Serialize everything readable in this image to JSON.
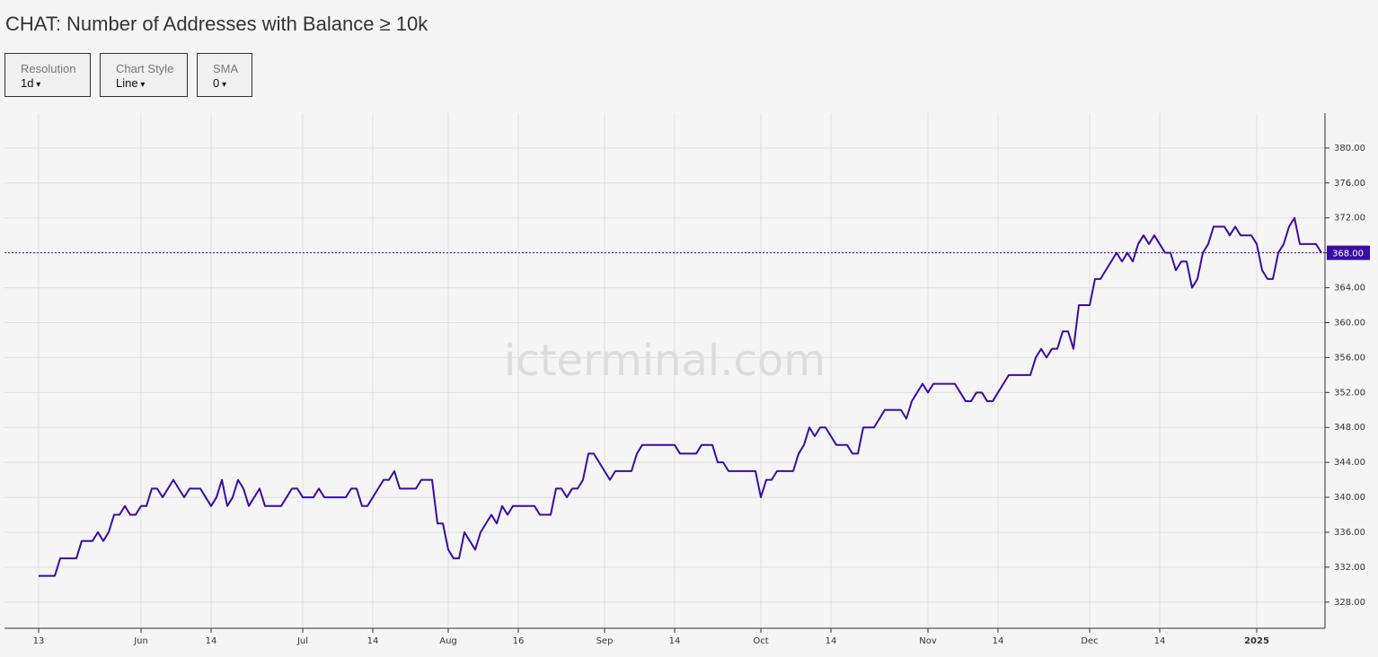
{
  "chart_data": {
    "type": "line",
    "title": "CHAT: Number of Addresses with Balance ≥ 10k",
    "controls": [
      {
        "label": "Resolution",
        "value": "1d"
      },
      {
        "label": "Chart Style",
        "value": "Line"
      },
      {
        "label": "SMA",
        "value": "0"
      }
    ],
    "watermark": "icterminal.com",
    "color": "#3a0ca3",
    "grid": true,
    "categories": [
      "13",
      null,
      null,
      null,
      null,
      null,
      null,
      null,
      null,
      null,
      null,
      null,
      null,
      null,
      null,
      null,
      null,
      null,
      null,
      "Jun",
      null,
      null,
      null,
      null,
      null,
      null,
      null,
      null,
      null,
      null,
      null,
      null,
      "14",
      null,
      null,
      null,
      null,
      null,
      null,
      null,
      null,
      null,
      null,
      null,
      null,
      null,
      null,
      null,
      null,
      "Jul",
      null,
      null,
      null,
      null,
      null,
      null,
      null,
      null,
      null,
      null,
      null,
      null,
      "14",
      null,
      null,
      null,
      null,
      null,
      null,
      null,
      null,
      null,
      null,
      null,
      null,
      null,
      "Aug",
      null,
      null,
      null,
      null,
      null,
      null,
      null,
      null,
      null,
      null,
      null,
      null,
      "16",
      null,
      null,
      null,
      null,
      null,
      null,
      null,
      null,
      null,
      null,
      null,
      null,
      null,
      null,
      null,
      "Sep",
      null,
      null,
      null,
      null,
      null,
      null,
      null,
      null,
      null,
      null,
      null,
      null,
      "14",
      null,
      null,
      null,
      null,
      null,
      null,
      null,
      null,
      null,
      null,
      null,
      null,
      null,
      null,
      null,
      "Oct",
      null,
      null,
      null,
      null,
      null,
      null,
      null,
      null,
      null,
      null,
      null,
      null,
      "14",
      null,
      null,
      null,
      null,
      null,
      null,
      null,
      null,
      null,
      null,
      null,
      null,
      null,
      null,
      null,
      null,
      null,
      "Nov",
      null,
      null,
      null,
      null,
      null,
      null,
      null,
      null,
      null,
      null,
      null,
      null,
      "14",
      null,
      null,
      null,
      null,
      null,
      null,
      null,
      null,
      null,
      null,
      null,
      null,
      null,
      null,
      null,
      null,
      "Dec",
      null,
      null,
      null,
      null,
      null,
      null,
      null,
      null,
      null,
      null,
      null,
      null,
      "14",
      null,
      null,
      null,
      null,
      null,
      null,
      null,
      null,
      null,
      null,
      null,
      null,
      null,
      null,
      null,
      null,
      null,
      "2025",
      null,
      null,
      null,
      null,
      null,
      null,
      null,
      null,
      null,
      null,
      null,
      null
    ],
    "values": [
      331,
      331,
      331,
      331,
      333,
      333,
      333,
      333,
      335,
      335,
      335,
      336,
      335,
      336,
      338,
      338,
      339,
      338,
      338,
      339,
      339,
      341,
      341,
      340,
      341,
      342,
      341,
      340,
      341,
      341,
      341,
      340,
      339,
      340,
      342,
      339,
      340,
      342,
      341,
      339,
      340,
      341,
      339,
      339,
      339,
      339,
      340,
      341,
      341,
      340,
      340,
      340,
      341,
      340,
      340,
      340,
      340,
      340,
      341,
      341,
      339,
      339,
      340,
      341,
      342,
      342,
      343,
      341,
      341,
      341,
      341,
      342,
      342,
      342,
      337,
      337,
      334,
      333,
      333,
      336,
      335,
      334,
      336,
      337,
      338,
      337,
      339,
      338,
      339,
      339,
      339,
      339,
      339,
      338,
      338,
      338,
      341,
      341,
      340,
      341,
      341,
      342,
      345,
      345,
      344,
      343,
      342,
      343,
      343,
      343,
      343,
      345,
      346,
      346,
      346,
      346,
      346,
      346,
      346,
      345,
      345,
      345,
      345,
      346,
      346,
      346,
      344,
      344,
      343,
      343,
      343,
      343,
      343,
      343,
      340,
      342,
      342,
      343,
      343,
      343,
      343,
      345,
      346,
      348,
      347,
      348,
      348,
      347,
      346,
      346,
      346,
      345,
      345,
      348,
      348,
      348,
      349,
      350,
      350,
      350,
      350,
      349,
      351,
      352,
      353,
      352,
      353,
      353,
      353,
      353,
      353,
      352,
      351,
      351,
      352,
      352,
      351,
      351,
      352,
      353,
      354,
      354,
      354,
      354,
      354,
      356,
      357,
      356,
      357,
      357,
      359,
      359,
      357,
      362,
      362,
      362,
      365,
      365,
      366,
      367,
      368,
      367,
      368,
      367,
      369,
      370,
      369,
      370,
      369,
      368,
      368,
      366,
      367,
      367,
      364,
      365,
      368,
      369,
      371,
      371,
      371,
      370,
      371,
      370,
      370,
      370,
      369,
      366,
      365,
      365,
      368,
      369,
      371,
      372,
      369,
      369,
      369,
      369,
      368
    ],
    "current_value": {
      "value": 368,
      "label": "368.00"
    },
    "ylim": [
      325,
      384
    ],
    "yticks": [
      {
        "value": 328,
        "label": "328.00"
      },
      {
        "value": 332,
        "label": "332.00"
      },
      {
        "value": 336,
        "label": "336.00"
      },
      {
        "value": 340,
        "label": "340.00"
      },
      {
        "value": 344,
        "label": "344.00"
      },
      {
        "value": 348,
        "label": "348.00"
      },
      {
        "value": 352,
        "label": "352.00"
      },
      {
        "value": 356,
        "label": "356.00"
      },
      {
        "value": 360,
        "label": "360.00"
      },
      {
        "value": 364,
        "label": "364.00"
      },
      {
        "value": 368,
        "label": "368.00"
      },
      {
        "value": 372,
        "label": "372.00"
      },
      {
        "value": 376,
        "label": "376.00"
      },
      {
        "value": 380,
        "label": "380.00"
      }
    ]
  }
}
